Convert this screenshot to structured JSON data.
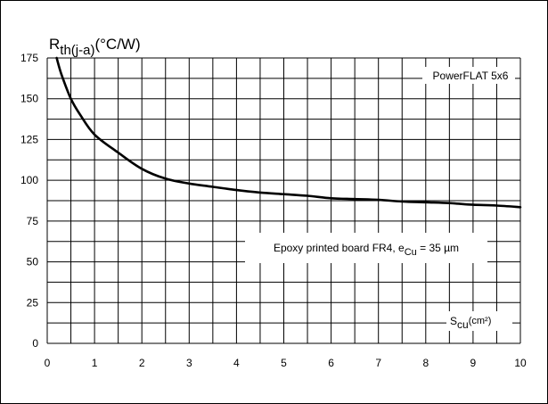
{
  "chart_data": {
    "type": "line",
    "ylabel": {
      "main": "R",
      "sub": "th(j-a)",
      "unit": "(°C/W)"
    },
    "xlabel": {
      "main": "S",
      "sub": "cu",
      "unit": "(cm²)"
    },
    "xlim": [
      0,
      10
    ],
    "ylim": [
      0,
      175
    ],
    "x_ticks": [
      "0",
      "1",
      "2",
      "3",
      "4",
      "5",
      "6",
      "7",
      "8",
      "9",
      "10"
    ],
    "y_ticks": [
      "0",
      "25",
      "50",
      "75",
      "100",
      "125",
      "150",
      "175"
    ],
    "grid": true,
    "annotations": {
      "package": "PowerFLAT 5x6",
      "board_pre": "Epoxy printed board FR4, e",
      "board_sub": "Cu",
      "board_post": " = 35 µm"
    },
    "series": [
      {
        "x": [
          0.2,
          0.3,
          0.5,
          0.7,
          1.0,
          1.5,
          2.0,
          2.5,
          3.0,
          3.5,
          4.0,
          4.5,
          5.0,
          5.5,
          6.0,
          6.5,
          7.0,
          7.5,
          8.0,
          8.5,
          9.0,
          9.5,
          10.0
        ],
        "y": [
          175,
          165,
          150,
          140,
          128,
          117,
          107,
          101,
          98,
          96,
          94,
          92.5,
          91.5,
          90.5,
          89,
          88.5,
          88,
          87,
          86.5,
          86,
          85,
          84.5,
          83.5
        ]
      }
    ]
  }
}
